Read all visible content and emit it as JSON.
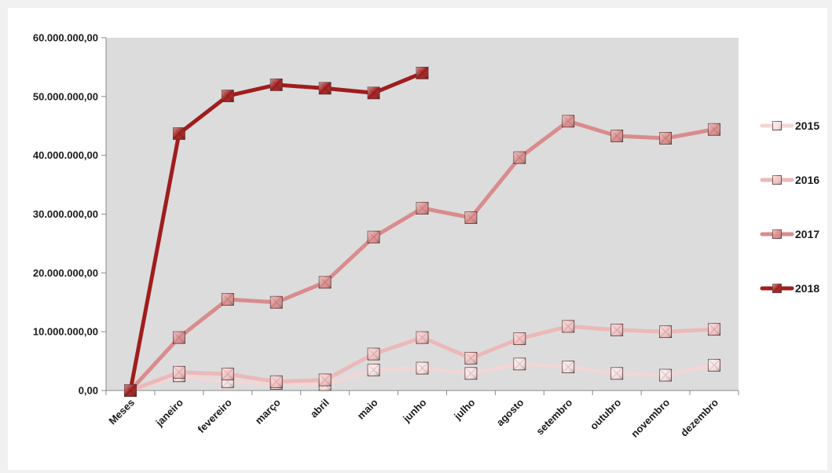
{
  "chart_data": {
    "type": "line",
    "title": "",
    "xlabel": "",
    "ylabel": "",
    "categories": [
      "Meses",
      "janeiro",
      "fevereiro",
      "março",
      "abril",
      "maio",
      "junho",
      "julho",
      "agosto",
      "setembro",
      "outubro",
      "novembro",
      "dezembro"
    ],
    "ylim": [
      0,
      60000000
    ],
    "yticks": [
      0,
      10000000,
      20000000,
      30000000,
      40000000,
      50000000,
      60000000
    ],
    "ytick_labels": [
      "0,00",
      "10.000.000,00",
      "20.000.000,00",
      "30.000.000,00",
      "40.000.000,00",
      "50.000.000,00",
      "60.000.000,00"
    ],
    "grid": false,
    "legend_position": "right",
    "plot_background": "#dcdcdc",
    "series": [
      {
        "name": "2015",
        "color": "#f2d6d6",
        "marker_color": "#f7e3e3",
        "values": [
          0,
          2500000,
          1500000,
          1200000,
          1000000,
          3500000,
          3800000,
          2900000,
          4500000,
          4000000,
          2900000,
          2600000,
          4300000
        ]
      },
      {
        "name": "2016",
        "color": "#ecb8b8",
        "marker_color": "#f2c4c4",
        "values": [
          0,
          3100000,
          2800000,
          1500000,
          1800000,
          6200000,
          9000000,
          5500000,
          8800000,
          10900000,
          10300000,
          10000000,
          10400000
        ]
      },
      {
        "name": "2017",
        "color": "#d98c8c",
        "marker_color": "#dc8f8f",
        "values": [
          0,
          9000000,
          15500000,
          15000000,
          18400000,
          26100000,
          31000000,
          29400000,
          39600000,
          45800000,
          43300000,
          42900000,
          44400000
        ]
      },
      {
        "name": "2018",
        "color": "#a01d1d",
        "marker_color": "#a31f1f",
        "values": [
          0,
          43700000,
          50100000,
          52000000,
          51400000,
          50600000,
          54000000,
          null,
          null,
          null,
          null,
          null,
          null
        ]
      }
    ]
  }
}
